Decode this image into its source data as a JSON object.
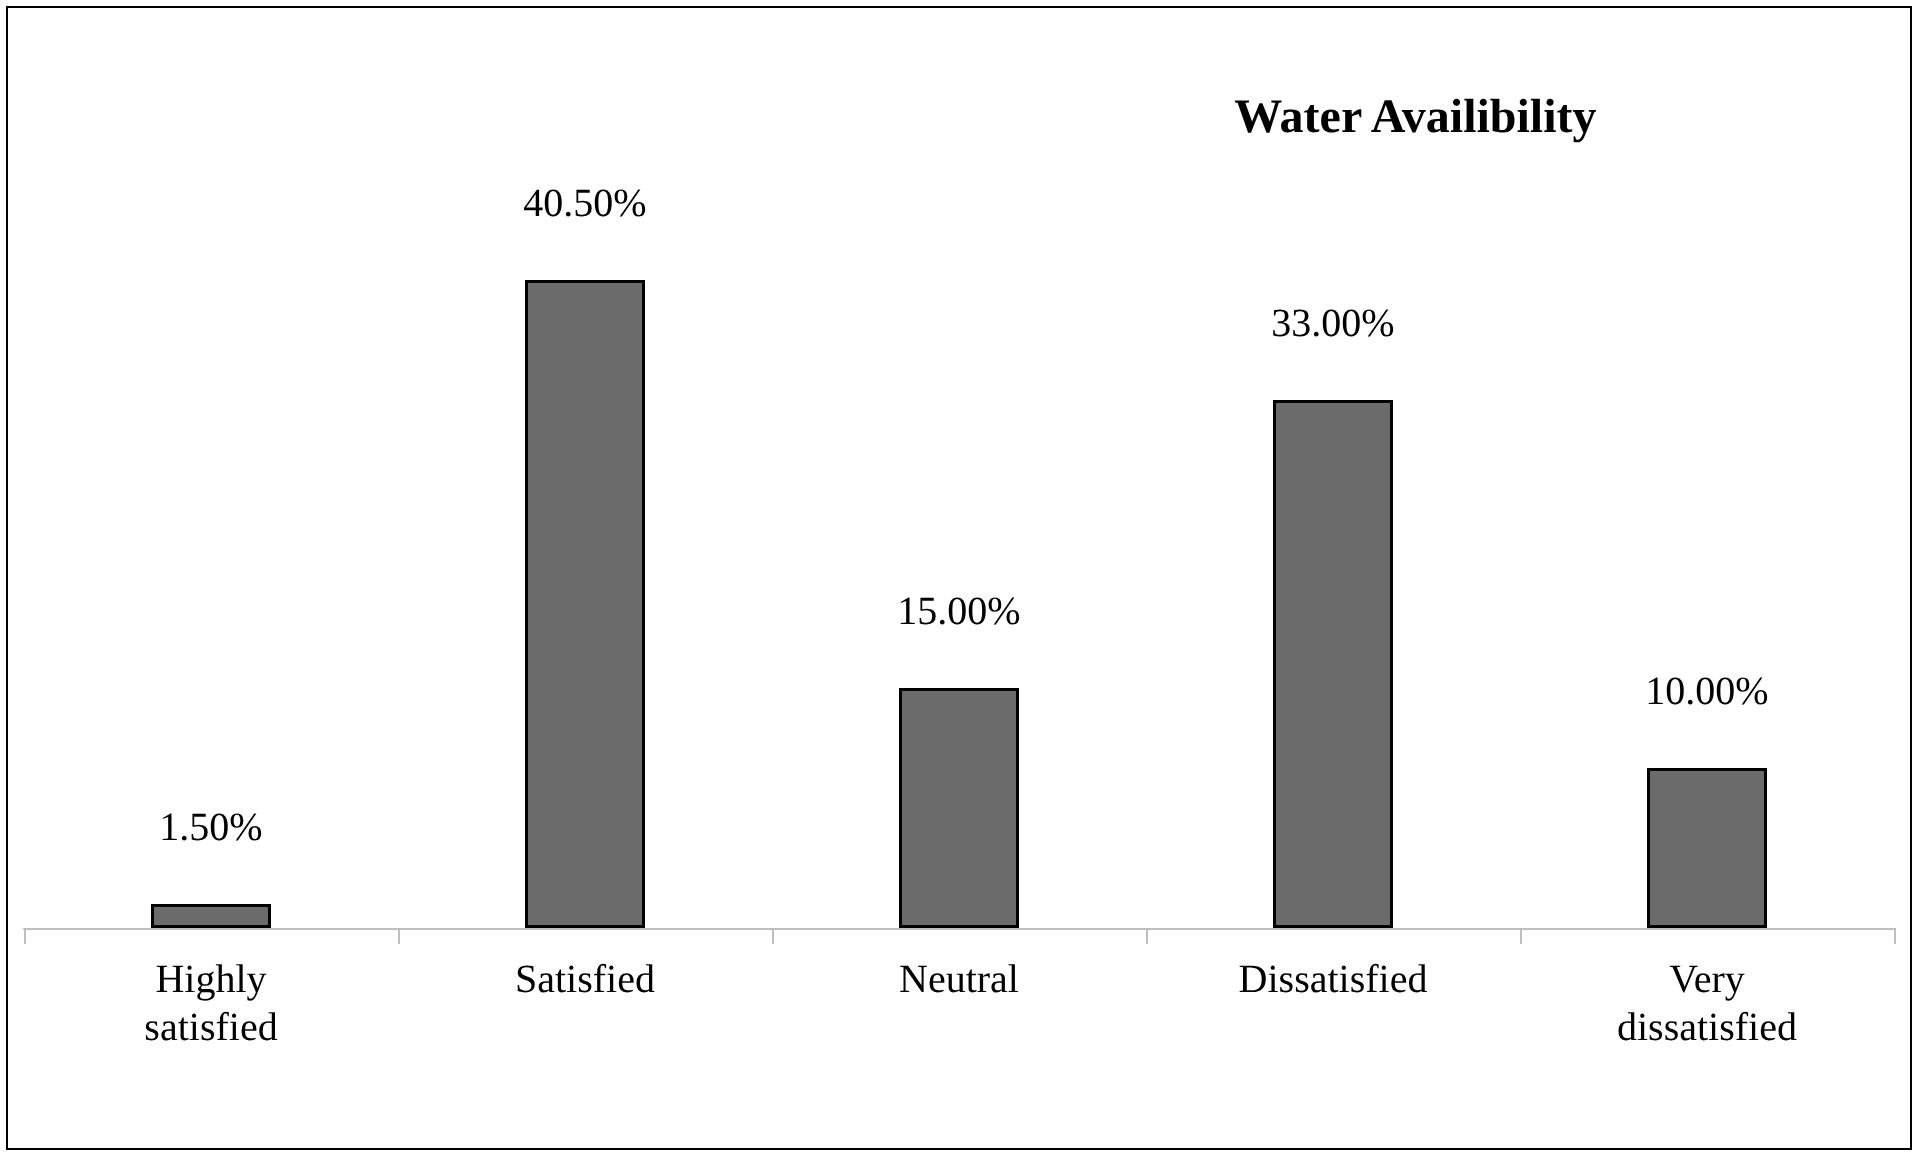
{
  "chart_data": {
    "type": "bar",
    "title": "Water Availibility",
    "categories": [
      "Highly satisfied",
      "Satisfied",
      "Neutral",
      "Dissatisfied",
      "Very dissatisfied"
    ],
    "values": [
      1.5,
      40.5,
      15,
      33,
      10
    ],
    "value_labels": [
      "1.50%",
      "40.50%",
      "15.00%",
      "33.00%",
      "10.00%"
    ],
    "color": "#6b6b6b"
  }
}
